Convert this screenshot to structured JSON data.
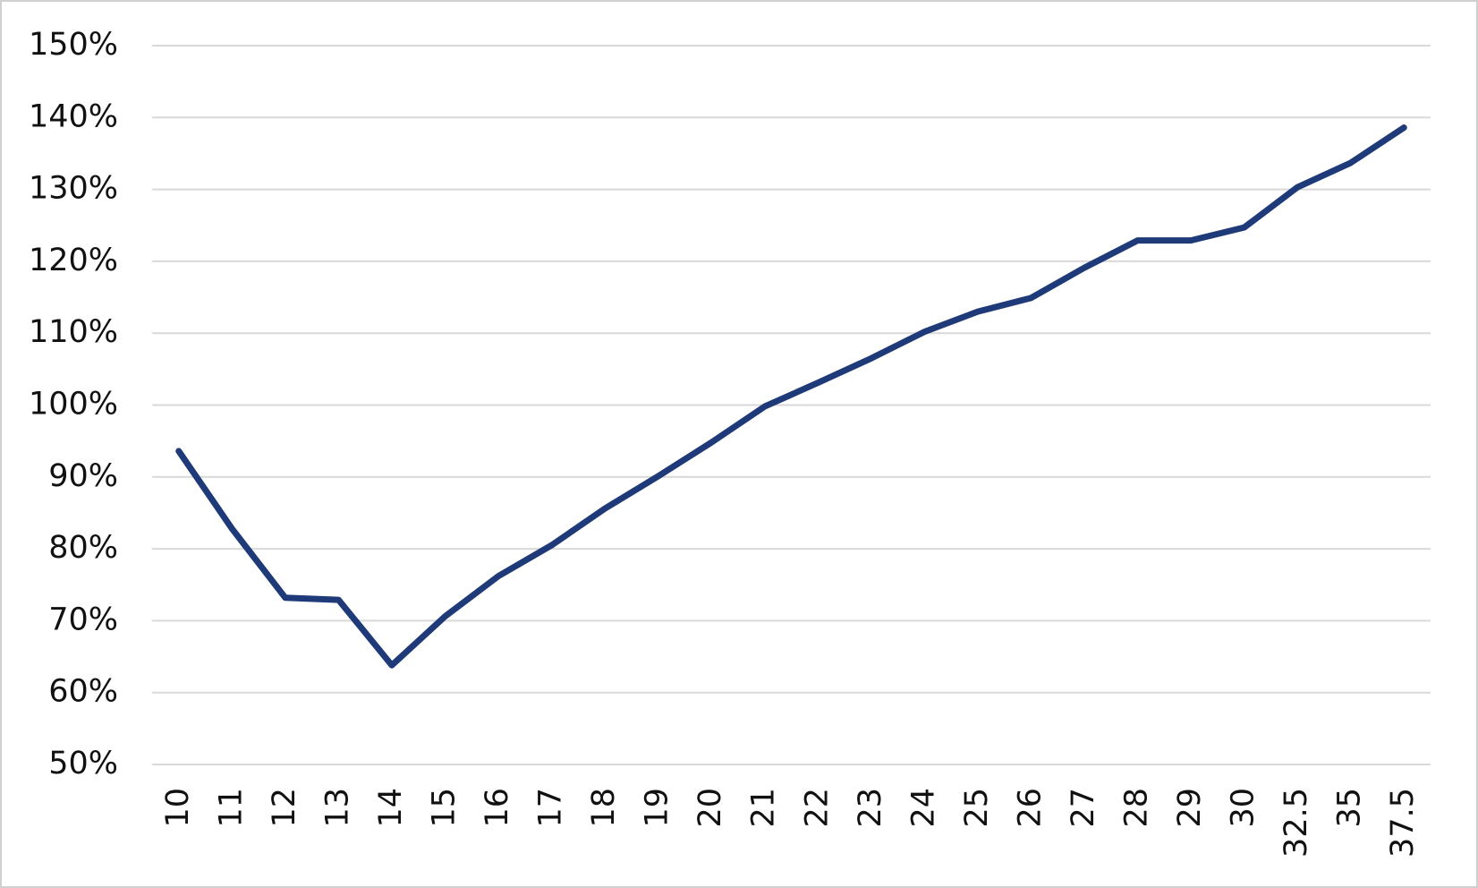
{
  "chart_data": {
    "type": "line",
    "categories": [
      "10",
      "11",
      "12",
      "13",
      "14",
      "15",
      "16",
      "17",
      "18",
      "19",
      "20",
      "21",
      "22",
      "23",
      "24",
      "25",
      "26",
      "27",
      "28",
      "29",
      "30",
      "32.5",
      "35",
      "37.5"
    ],
    "series": [
      {
        "color": "#1f3a78",
        "values": [
          93.6,
          82.8,
          73.2,
          72.9,
          63.8,
          70.6,
          76.2,
          80.5,
          85.6,
          90.1,
          94.8,
          99.8,
          103.1,
          106.5,
          110.2,
          113,
          114.9,
          119.1,
          122.9,
          122.9,
          124.7,
          130.3,
          133.7,
          138.6
        ]
      }
    ],
    "ylim": [
      50,
      150
    ],
    "yticks": [
      {
        "value": 50,
        "label": "50%"
      },
      {
        "value": 60,
        "label": "60%"
      },
      {
        "value": 70,
        "label": "70%"
      },
      {
        "value": 80,
        "label": "80%"
      },
      {
        "value": 90,
        "label": "90%"
      },
      {
        "value": 100,
        "label": "100%"
      },
      {
        "value": 110,
        "label": "110%"
      },
      {
        "value": 120,
        "label": "120%"
      },
      {
        "value": 130,
        "label": "130%"
      },
      {
        "value": 140,
        "label": "140%"
      },
      {
        "value": 150,
        "label": "150%"
      }
    ],
    "grid": true
  }
}
